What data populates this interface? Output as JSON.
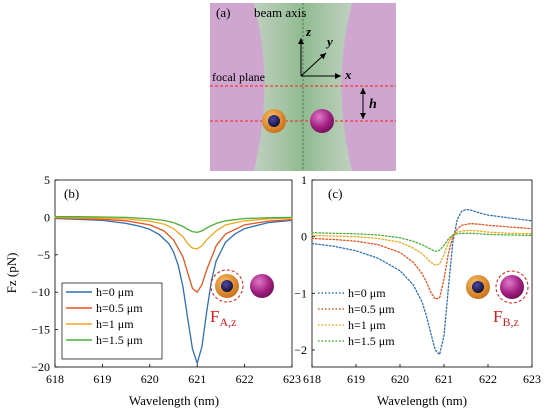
{
  "panel_a": {
    "label": "(a)",
    "beam_axis_label": "beam axis",
    "focal_plane_label": "focal plane",
    "h_label": "h",
    "axis_z": "z",
    "axis_y": "y",
    "axis_x": "x",
    "colors": {
      "background": "#cfa6cf",
      "beam": "#9ec39e",
      "dashed_line": "#ff2020",
      "particle_shell": "#e08a2a",
      "particle_core": "#2b1a4a",
      "particle_b": "#b0258a"
    }
  },
  "chart_data": [
    {
      "type": "line",
      "panel_label": "(b)",
      "xlabel": "Wavelength (nm)",
      "ylabel": "Fz (pN)",
      "xlim": [
        618,
        623
      ],
      "ylim": [
        -20,
        5
      ],
      "xticks": [
        618,
        619,
        620,
        621,
        622,
        623
      ],
      "yticks": [
        5,
        0,
        -5,
        -10,
        -15,
        -20
      ],
      "annotation": {
        "main": "F",
        "sub": "A,z"
      },
      "legend_position": "bottom-left",
      "grid": false,
      "series": [
        {
          "name": "h=0 μm",
          "color": "#2f6fb6",
          "style": "solid",
          "x": [
            618.0,
            618.5,
            619.0,
            619.5,
            619.8,
            620.0,
            620.2,
            620.4,
            620.5,
            620.6,
            620.7,
            620.8,
            620.9,
            621.0,
            621.1,
            621.2,
            621.3,
            621.4,
            621.6,
            621.8,
            622.0,
            622.5,
            623.0
          ],
          "y": [
            -0.15,
            -0.25,
            -0.4,
            -0.8,
            -1.2,
            -1.6,
            -2.3,
            -3.5,
            -4.6,
            -6.4,
            -9.3,
            -13.5,
            -17.6,
            -19.5,
            -17.3,
            -12.6,
            -8.5,
            -5.8,
            -3.3,
            -2.2,
            -1.5,
            -0.7,
            -0.4
          ]
        },
        {
          "name": "h=0.5 μm",
          "color": "#e8531f",
          "style": "solid",
          "x": [
            618.0,
            618.5,
            619.0,
            619.5,
            620.0,
            620.3,
            620.5,
            620.7,
            620.8,
            620.9,
            621.0,
            621.1,
            621.2,
            621.4,
            621.6,
            622.0,
            622.5,
            623.0
          ],
          "y": [
            -0.1,
            -0.15,
            -0.25,
            -0.45,
            -1.0,
            -1.8,
            -3.0,
            -5.3,
            -7.4,
            -9.5,
            -10.0,
            -9.0,
            -7.0,
            -3.8,
            -2.2,
            -1.0,
            -0.5,
            -0.3
          ]
        },
        {
          "name": "h=1 μm",
          "color": "#f0a81c",
          "style": "solid",
          "x": [
            618.0,
            618.5,
            619.0,
            619.5,
            620.0,
            620.3,
            620.5,
            620.7,
            620.8,
            620.9,
            621.0,
            621.1,
            621.2,
            621.4,
            621.6,
            622.0,
            622.5,
            623.0
          ],
          "y": [
            0.0,
            -0.05,
            -0.1,
            -0.2,
            -0.5,
            -0.9,
            -1.5,
            -2.6,
            -3.5,
            -4.1,
            -4.2,
            -3.8,
            -3.0,
            -1.8,
            -1.0,
            -0.45,
            -0.2,
            -0.1
          ]
        },
        {
          "name": "h=1.5 μm",
          "color": "#4cae3a",
          "style": "solid",
          "x": [
            618.0,
            618.5,
            619.0,
            619.5,
            620.0,
            620.3,
            620.5,
            620.7,
            620.8,
            620.9,
            621.0,
            621.1,
            621.2,
            621.4,
            621.6,
            622.0,
            622.5,
            623.0
          ],
          "y": [
            0.1,
            0.1,
            0.05,
            0.0,
            -0.2,
            -0.4,
            -0.7,
            -1.2,
            -1.6,
            -1.9,
            -2.0,
            -1.8,
            -1.4,
            -0.8,
            -0.45,
            -0.15,
            -0.05,
            0.0
          ]
        }
      ]
    },
    {
      "type": "line",
      "panel_label": "(c)",
      "xlabel": "Wavelength (nm)",
      "ylabel": "",
      "xlim": [
        618,
        623
      ],
      "ylim": [
        -2.3,
        1
      ],
      "xticks": [
        618,
        619,
        620,
        621,
        622,
        623
      ],
      "yticks": [
        1,
        0,
        -1,
        -2
      ],
      "annotation": {
        "main": "F",
        "sub": "B,z"
      },
      "legend_position": "bottom-left",
      "grid": false,
      "series": [
        {
          "name": "h=0 μm",
          "color": "#2f6fb6",
          "style": "dotted",
          "x": [
            618.0,
            618.5,
            619.0,
            619.5,
            620.0,
            620.3,
            620.5,
            620.6,
            620.7,
            620.8,
            620.9,
            621.0,
            621.1,
            621.2,
            621.3,
            621.4,
            621.5,
            621.6,
            621.8,
            622.0,
            622.5,
            623.0
          ],
          "y": [
            -0.12,
            -0.17,
            -0.25,
            -0.38,
            -0.6,
            -0.85,
            -1.15,
            -1.4,
            -1.7,
            -2.0,
            -2.08,
            -1.75,
            -0.9,
            -0.1,
            0.3,
            0.45,
            0.48,
            0.47,
            0.42,
            0.38,
            0.33,
            0.28
          ]
        },
        {
          "name": "h=0.5 μm",
          "color": "#e8531f",
          "style": "dotted",
          "x": [
            618.0,
            618.5,
            619.0,
            619.5,
            620.0,
            620.3,
            620.5,
            620.6,
            620.7,
            620.8,
            620.9,
            621.0,
            621.1,
            621.2,
            621.3,
            621.4,
            621.6,
            621.8,
            622.0,
            622.5,
            623.0
          ],
          "y": [
            -0.03,
            -0.05,
            -0.08,
            -0.14,
            -0.28,
            -0.45,
            -0.65,
            -0.8,
            -0.98,
            -1.1,
            -1.08,
            -0.75,
            -0.3,
            0.0,
            0.13,
            0.2,
            0.23,
            0.22,
            0.2,
            0.17,
            0.14
          ]
        },
        {
          "name": "h=1 μm",
          "color": "#f0a81c",
          "style": "dotted",
          "x": [
            618.0,
            618.5,
            619.0,
            619.5,
            620.0,
            620.3,
            620.5,
            620.7,
            620.8,
            620.9,
            621.0,
            621.1,
            621.2,
            621.3,
            621.4,
            621.6,
            621.8,
            622.0,
            622.5,
            623.0
          ],
          "y": [
            0.02,
            0.01,
            0.0,
            -0.03,
            -0.1,
            -0.2,
            -0.3,
            -0.45,
            -0.5,
            -0.48,
            -0.32,
            -0.1,
            0.03,
            0.08,
            0.1,
            0.11,
            0.1,
            0.08,
            0.06,
            0.05
          ]
        },
        {
          "name": "h=1.5 μm",
          "color": "#4cae3a",
          "style": "dotted",
          "x": [
            618.0,
            618.5,
            619.0,
            619.5,
            620.0,
            620.3,
            620.5,
            620.7,
            620.8,
            620.9,
            621.0,
            621.1,
            621.2,
            621.3,
            621.4,
            621.6,
            621.8,
            622.0,
            622.5,
            623.0
          ],
          "y": [
            0.07,
            0.06,
            0.05,
            0.03,
            -0.02,
            -0.08,
            -0.14,
            -0.22,
            -0.26,
            -0.24,
            -0.15,
            -0.04,
            0.03,
            0.05,
            0.06,
            0.06,
            0.05,
            0.04,
            0.03,
            0.02
          ]
        }
      ]
    }
  ]
}
